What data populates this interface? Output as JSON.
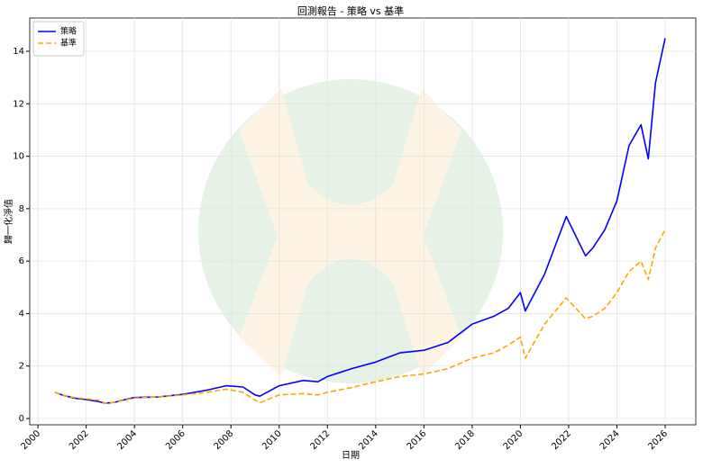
{
  "chart_data": {
    "type": "line",
    "title": "回測報告 - 策略 vs 基準",
    "x_label": "日期",
    "y_label": "歸一化淨值",
    "x": [
      2000.7,
      2001.0,
      2001.5,
      2002.0,
      2002.5,
      2002.8,
      2003.2,
      2003.6,
      2004.0,
      2005.0,
      2006.0,
      2007.0,
      2007.8,
      2008.5,
      2009.0,
      2009.2,
      2010.0,
      2011.0,
      2011.6,
      2012.0,
      2013.0,
      2014.0,
      2015.0,
      2016.0,
      2017.0,
      2018.0,
      2018.9,
      2019.5,
      2020.0,
      2020.2,
      2021.0,
      2021.9,
      2022.7,
      2023.0,
      2023.5,
      2024.0,
      2024.5,
      2025.0,
      2025.3,
      2025.6,
      2026.0
    ],
    "series": [
      {
        "name": "策略",
        "color": "#0000ff",
        "style": "solid",
        "values": [
          1.0,
          0.9,
          0.78,
          0.72,
          0.65,
          0.58,
          0.62,
          0.72,
          0.8,
          0.82,
          0.92,
          1.08,
          1.25,
          1.2,
          0.9,
          0.85,
          1.25,
          1.45,
          1.4,
          1.6,
          1.9,
          2.15,
          2.5,
          2.6,
          2.9,
          3.6,
          3.9,
          4.2,
          4.8,
          4.1,
          5.5,
          7.7,
          6.2,
          6.5,
          7.2,
          8.3,
          10.4,
          11.2,
          9.9,
          12.8,
          14.5
        ]
      },
      {
        "name": "基準",
        "color": "#ffa500",
        "style": "dashed",
        "values": [
          1.0,
          0.9,
          0.8,
          0.75,
          0.7,
          0.58,
          0.62,
          0.7,
          0.78,
          0.82,
          0.9,
          1.0,
          1.12,
          1.0,
          0.7,
          0.6,
          0.9,
          0.95,
          0.9,
          1.0,
          1.18,
          1.4,
          1.6,
          1.7,
          1.9,
          2.3,
          2.5,
          2.8,
          3.1,
          2.3,
          3.6,
          4.6,
          3.8,
          3.9,
          4.2,
          4.8,
          5.6,
          6.0,
          5.3,
          6.5,
          7.2
        ]
      }
    ],
    "xlim": [
      1999.66,
      2027.27
    ],
    "xticks": [
      2000,
      2002,
      2004,
      2006,
      2008,
      2010,
      2012,
      2014,
      2016,
      2018,
      2020,
      2022,
      2024,
      2026
    ],
    "ylim": [
      -0.24,
      15.27
    ],
    "yticks": [
      0,
      2,
      4,
      6,
      8,
      10,
      12,
      14
    ],
    "grid": true,
    "legend": "upper-left"
  }
}
